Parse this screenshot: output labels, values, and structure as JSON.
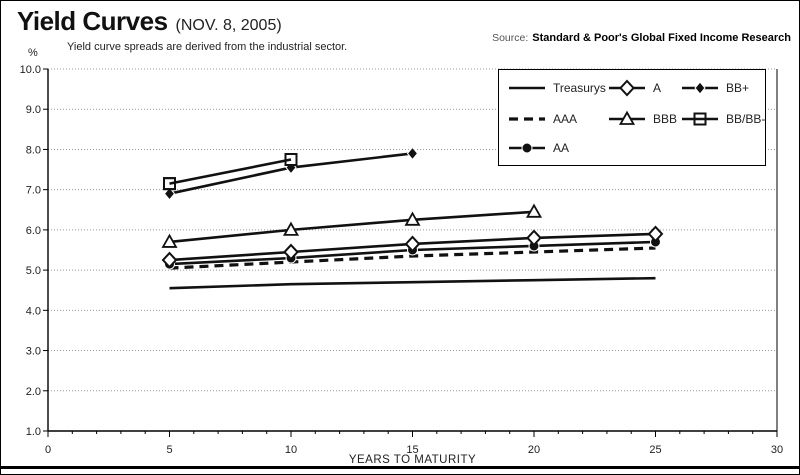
{
  "header": {
    "title": "Yield Curves",
    "date": "(NOV. 8, 2005)",
    "subtitle": "Yield curve spreads are derived from the industrial sector.",
    "percent_label": "%",
    "source_prefix": "Source:",
    "source_text": "Standard & Poor's Global Fixed Income Research"
  },
  "chart_data": {
    "type": "line",
    "title": "Yield Curves (NOV. 8, 2005)",
    "subtitle": "Yield curve spreads are derived from the industrial sector.",
    "xlabel": "YEARS TO MATURITY",
    "ylabel": "%",
    "xlim": [
      0,
      30
    ],
    "ylim": [
      1.0,
      10.0
    ],
    "x_ticks": [
      0,
      5,
      10,
      15,
      20,
      25,
      30
    ],
    "x_minor_tick_step": 1,
    "y_ticks": [
      1,
      2,
      3,
      4,
      5,
      6,
      7,
      8,
      9,
      10
    ],
    "y_tick_labels": [
      "1.0",
      "2.0",
      "3.0",
      "4.0",
      "5.0",
      "6.0",
      "7.0",
      "8.0",
      "9.0",
      "10.0"
    ],
    "grid": "horizontal-dotted",
    "legend_position": "top-right",
    "legend_columns": [
      [
        "Treasurys",
        "AAA",
        "AA"
      ],
      [
        "A",
        "BBB"
      ],
      [
        "BB+",
        "BB/BB-"
      ]
    ],
    "series": [
      {
        "name": "Treasurys",
        "line": "solid",
        "marker": "none",
        "x": [
          5,
          10,
          15,
          20,
          25
        ],
        "values": [
          4.55,
          4.65,
          4.7,
          4.75,
          4.8
        ]
      },
      {
        "name": "AAA",
        "line": "dashed",
        "marker": "none",
        "x": [
          5,
          10,
          15,
          20,
          25
        ],
        "values": [
          5.05,
          5.2,
          5.35,
          5.45,
          5.55
        ]
      },
      {
        "name": "AA",
        "line": "solid",
        "marker": "circle-filled",
        "x": [
          5,
          10,
          15,
          20,
          25
        ],
        "values": [
          5.15,
          5.3,
          5.5,
          5.6,
          5.7
        ]
      },
      {
        "name": "A",
        "line": "solid",
        "marker": "diamond-open",
        "x": [
          5,
          10,
          15,
          20,
          25
        ],
        "values": [
          5.25,
          5.45,
          5.65,
          5.8,
          5.9
        ]
      },
      {
        "name": "BBB",
        "line": "solid",
        "marker": "triangle-open",
        "x": [
          5,
          10,
          15,
          20
        ],
        "values": [
          5.7,
          6.0,
          6.25,
          6.45
        ]
      },
      {
        "name": "BB+",
        "line": "solid",
        "marker": "diamond-filled",
        "x": [
          5,
          10,
          15
        ],
        "values": [
          6.9,
          7.55,
          7.9
        ]
      },
      {
        "name": "BB/BB-",
        "line": "solid",
        "marker": "square-open",
        "x": [
          5,
          10
        ],
        "values": [
          7.15,
          7.75
        ]
      }
    ],
    "colors": {
      "line": "#000000",
      "grid": "#999999",
      "background": "#ffffff"
    }
  }
}
